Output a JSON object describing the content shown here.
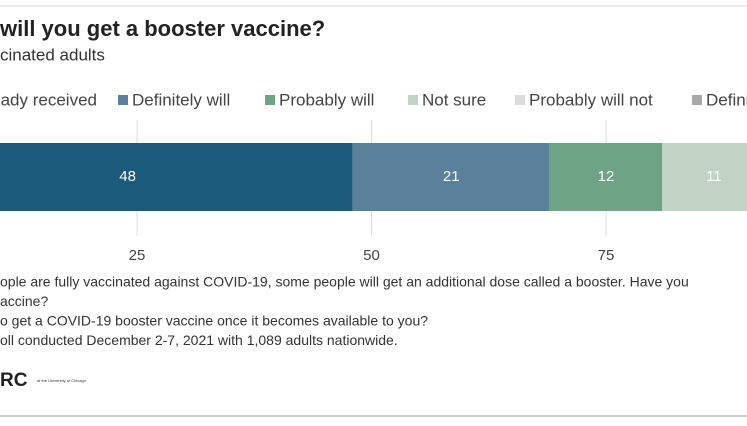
{
  "chart_data": {
    "type": "stacked_bar_horizontal",
    "title": "will you get a booster vaccine?",
    "subtitle": "cinated adults",
    "series": [
      {
        "name": "Already received",
        "color": "#1b5a7b",
        "values": [
          48
        ]
      },
      {
        "name": "Definitely will",
        "color": "#5b8099",
        "values": [
          21
        ]
      },
      {
        "name": "Probably will",
        "color": "#6fa386",
        "values": [
          12
        ]
      },
      {
        "name": "Not sure",
        "color": "#c1d3c4",
        "values": [
          11
        ]
      },
      {
        "name": "Probably will not",
        "color": "#dcdcdc",
        "values": [
          null
        ]
      },
      {
        "name": "Definitely will not",
        "color": "#a8a8a8",
        "values": [
          null
        ]
      }
    ],
    "xlim": [
      0,
      100
    ],
    "xticks": [
      25,
      50,
      75
    ],
    "grid": true,
    "notes": [
      "ople are fully vaccinated against COVID-19, some people will get an additional dose called a booster. Have you",
      "accine?",
      "o get a COVID-19 booster vaccine once it becomes available to you?",
      "oll conducted December 2-7, 2021 with 1,089 adults nationwide."
    ],
    "logo": "RC",
    "logo_small": "at the University of Chicago"
  }
}
